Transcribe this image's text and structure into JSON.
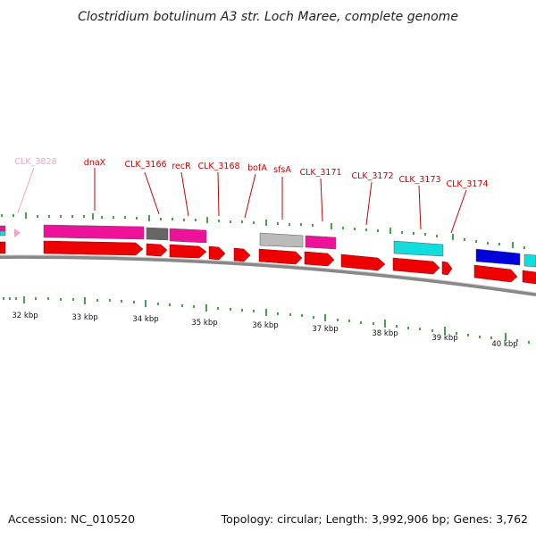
{
  "title": "Clostridium botulinum A3 str. Loch Maree, complete genome",
  "footer": {
    "accession": "Accession: NC_010520",
    "topology": "Topology: circular; Length: 3,992,906 bp; Genes: 3,762"
  },
  "colors": {
    "label": "#cc0000",
    "label_faded": "#f4a0c8",
    "tick": "#1a8a1a",
    "backbone": "#888888",
    "forward_gene": "#ee0000",
    "magenta": "#ee1199",
    "cyan": "#11dddd",
    "blue": "#0000dd",
    "gray": "#bbbbbb",
    "dark_gray": "#666666"
  },
  "gene_labels": [
    {
      "text": "CLK_3828",
      "faded": true
    },
    {
      "text": "dnaX"
    },
    {
      "text": "CLK_3166"
    },
    {
      "text": "recR"
    },
    {
      "text": "CLK_3168"
    },
    {
      "text": "bofA"
    },
    {
      "text": "sfsA"
    },
    {
      "text": "CLK_3171"
    },
    {
      "text": "CLK_3172"
    },
    {
      "text": "CLK_3173"
    },
    {
      "text": "CLK_3174"
    }
  ],
  "kbp_labels": [
    "32 kbp",
    "33 kbp",
    "34 kbp",
    "35 kbp",
    "36 kbp",
    "37 kbp",
    "38 kbp",
    "39 kbp",
    "40 kbp"
  ]
}
